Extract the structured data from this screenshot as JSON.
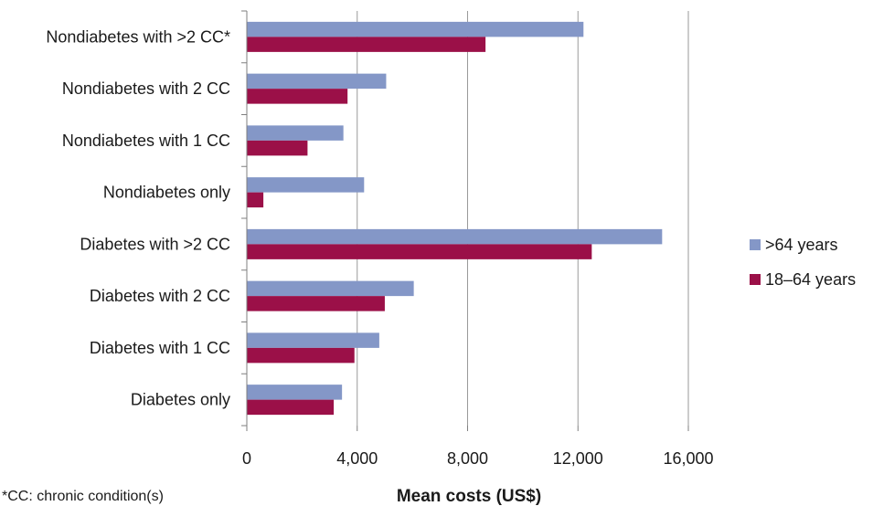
{
  "chart_data": {
    "type": "bar",
    "orientation": "horizontal",
    "categories": [
      "Nondiabetes with >2 CC*",
      "Nondiabetes with 2 CC",
      "Nondiabetes with 1 CC",
      "Nondiabetes only",
      "Diabetes with >2 CC",
      "Diabetes with 2 CC",
      "Diabetes with 1 CC",
      "Diabetes only"
    ],
    "series": [
      {
        "name": ">64 years",
        "color": "#8497c7",
        "values": [
          12200,
          5050,
          3500,
          4250,
          15050,
          6050,
          4800,
          3450
        ]
      },
      {
        "name": "18–64 years",
        "color": "#9b1048",
        "values": [
          8650,
          3650,
          2200,
          600,
          12500,
          5000,
          3900,
          3150
        ]
      }
    ],
    "xlabel": "Mean costs (US$)",
    "xlim": [
      0,
      16000
    ],
    "xticks": [
      0,
      4000,
      8000,
      12000,
      16000
    ],
    "xtick_labels": [
      "0",
      "4,000",
      "8,000",
      "12,000",
      "16,000"
    ],
    "grid": "vertical",
    "legend_position": "right",
    "footnote": "*CC: chronic condition(s)"
  }
}
